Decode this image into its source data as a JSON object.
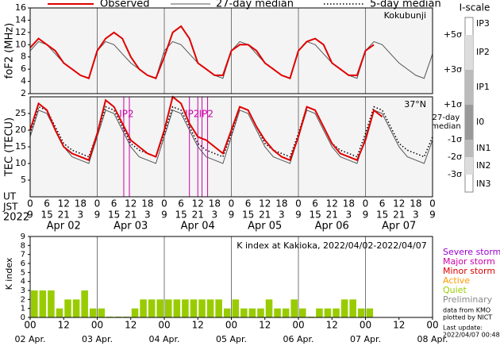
{
  "chart_data": [
    {
      "type": "line",
      "ylabel": "foF2 (MHz)",
      "annotation": "Kokubunji",
      "x": [
        0,
        3,
        6,
        9,
        12,
        15,
        18,
        21,
        24,
        27,
        30,
        33,
        36,
        39,
        42,
        45,
        48,
        51,
        54,
        57,
        60,
        63,
        66,
        69,
        72,
        75,
        78,
        81,
        84,
        87,
        90,
        93,
        96,
        99,
        102,
        105,
        108,
        111,
        114,
        117,
        120,
        123,
        126,
        129,
        132,
        135,
        138,
        141,
        144
      ],
      "ylim": [
        2,
        16
      ],
      "yticks": [
        2,
        4,
        6,
        8,
        10,
        12,
        14,
        16
      ],
      "series": [
        {
          "color": "#e00000",
          "style": "solid",
          "values": [
            9.5,
            11,
            10,
            9,
            7,
            6,
            5,
            4.5,
            9,
            11,
            12,
            11,
            8,
            6,
            5,
            4.5,
            8,
            12,
            13,
            11,
            7,
            6,
            5,
            5,
            9,
            10,
            10,
            9,
            7,
            6,
            5,
            4.5,
            9,
            10.5,
            11,
            10,
            7,
            6,
            5,
            5,
            9,
            10,
            null,
            null,
            null,
            null,
            null,
            null,
            null
          ]
        },
        {
          "color": "#555555",
          "style": "thin",
          "values": [
            9,
            10.5,
            10,
            8.5,
            7,
            6,
            5,
            4.5,
            9,
            10.5,
            10,
            8.5,
            7,
            6,
            5,
            4.5,
            9,
            10.5,
            10,
            8.5,
            7,
            6,
            5,
            4.5,
            9,
            10.5,
            10,
            8.5,
            7,
            6,
            5,
            4.5,
            9,
            10.5,
            10,
            8.5,
            7,
            6,
            5,
            4.5,
            9,
            10.5,
            10,
            8.5,
            7,
            6,
            5,
            4.5,
            8.5
          ]
        }
      ]
    },
    {
      "type": "line",
      "ylabel": "TEC (TECU)",
      "annotation": "37°N",
      "x": [
        0,
        3,
        6,
        9,
        12,
        15,
        18,
        21,
        24,
        27,
        30,
        33,
        36,
        39,
        42,
        45,
        48,
        51,
        54,
        57,
        60,
        63,
        66,
        69,
        72,
        75,
        78,
        81,
        84,
        87,
        90,
        93,
        96,
        99,
        102,
        105,
        108,
        111,
        114,
        117,
        120,
        123,
        126,
        129,
        132,
        135,
        138,
        141,
        144
      ],
      "ylim": [
        0,
        30
      ],
      "yticks": [
        5,
        10,
        15,
        20,
        25
      ],
      "series": [
        {
          "name": "Observed",
          "color": "#e00000",
          "style": "solid",
          "values": [
            20,
            28,
            26,
            20,
            15,
            13,
            12,
            11,
            19,
            29,
            27,
            22,
            17,
            15,
            13,
            12,
            20,
            30,
            28,
            22,
            18,
            17,
            15,
            13,
            20,
            27,
            26,
            21,
            17,
            14,
            12,
            11,
            18,
            27,
            26,
            21,
            16,
            13,
            12,
            11,
            17,
            26,
            24,
            null,
            null,
            null,
            null,
            null,
            null
          ]
        },
        {
          "name": "27-day median",
          "color": "#555555",
          "style": "thin",
          "values": [
            18,
            26,
            25,
            20,
            15,
            12,
            11,
            10,
            18,
            26,
            25,
            20,
            15,
            12,
            11,
            10,
            18,
            26,
            25,
            20,
            15,
            12,
            11,
            10,
            18,
            26,
            25,
            20,
            15,
            12,
            11,
            10,
            18,
            26,
            25,
            20,
            15,
            12,
            11,
            10,
            18,
            26,
            25,
            20,
            15,
            12,
            11,
            10,
            17
          ]
        },
        {
          "name": "5-day median",
          "color": "#000000",
          "style": "dotted",
          "values": [
            19,
            27,
            26,
            21,
            16,
            14,
            13,
            12,
            19,
            27,
            26,
            21,
            16,
            14,
            13,
            12,
            19,
            27,
            26,
            21,
            16,
            14,
            13,
            12,
            19,
            27,
            26,
            21,
            16,
            14,
            13,
            12,
            19,
            27,
            26,
            21,
            16,
            14,
            13,
            12,
            19,
            27,
            26,
            21,
            16,
            14,
            13,
            12,
            18
          ]
        }
      ],
      "events": [
        33.5,
        35.5,
        57,
        60,
        61.5,
        63.5
      ],
      "event_color": "#cc00aa",
      "event_labels": [
        {
          "x": 34.5,
          "label": "IP2"
        },
        {
          "x": 58,
          "label": "IP2"
        },
        {
          "x": 63,
          "label": "IP2"
        }
      ],
      "xlim": [
        0,
        144
      ],
      "xticks": [
        0,
        6,
        12,
        18,
        {
          "value": 24,
          "label": "0"
        },
        {
          "value": 30,
          "label": "6"
        },
        {
          "value": 36,
          "label": "12"
        },
        {
          "value": 42,
          "label": "18"
        },
        {
          "value": 48,
          "label": "0"
        },
        {
          "value": 54,
          "label": "6"
        },
        {
          "value": 60,
          "label": "12"
        },
        {
          "value": 66,
          "label": "18"
        },
        {
          "value": 72,
          "label": "0"
        },
        {
          "value": 78,
          "label": "6"
        },
        {
          "value": 84,
          "label": "12"
        },
        {
          "value": 90,
          "label": "18"
        },
        {
          "value": 96,
          "label": "0"
        },
        {
          "value": 102,
          "label": "6"
        },
        {
          "value": 108,
          "label": "12"
        },
        {
          "value": 114,
          "label": "18"
        },
        {
          "value": 120,
          "label": "0"
        },
        {
          "value": 126,
          "label": "6"
        },
        {
          "value": 132,
          "label": "12"
        },
        {
          "value": 138,
          "label": "18"
        },
        {
          "value": 144,
          "label": "0"
        }
      ],
      "jst_labels": [
        "9",
        "15",
        "21",
        "3",
        "9",
        "15",
        "21",
        "3",
        "9",
        "15",
        "21",
        "3",
        "9",
        "15",
        "21",
        "3",
        "9",
        "15",
        "21",
        "3",
        "9",
        "15",
        "21",
        "3",
        "9"
      ],
      "row_labels": [
        "UT",
        "JST"
      ],
      "year": "2022",
      "date_labels": [
        {
          "x": 12,
          "label": "Apr 02"
        },
        {
          "x": 36,
          "label": "Apr 03"
        },
        {
          "x": 60,
          "label": "Apr 04"
        },
        {
          "x": 84,
          "label": "Apr 05"
        },
        {
          "x": 108,
          "label": "Apr 06"
        },
        {
          "x": 132,
          "label": "Apr 07"
        }
      ]
    },
    {
      "type": "bar",
      "title": "K index at Kakioka, 2022/04/02-2022/04/07",
      "ylabel": "K index",
      "values": [
        3,
        3,
        3,
        1,
        2,
        2,
        3,
        1,
        1,
        0,
        0,
        0,
        1,
        2,
        2,
        2,
        2,
        2,
        2,
        2,
        2,
        2,
        2,
        1,
        2,
        1,
        1,
        1,
        2,
        1,
        1,
        2,
        1,
        0,
        1,
        1,
        1,
        2,
        2,
        1,
        1
      ],
      "color": "#99cc00",
      "ylim": [
        0,
        9
      ],
      "yticks": [
        0,
        1,
        2,
        3,
        4,
        5,
        6,
        7,
        8,
        9
      ],
      "xlim": [
        0,
        144
      ],
      "xticks": [
        {
          "value": 0,
          "label": "00"
        },
        12,
        {
          "value": 24,
          "label": "00"
        },
        {
          "value": 36,
          "label": "12"
        },
        {
          "value": 48,
          "label": "00"
        },
        {
          "value": 60,
          "label": "12"
        },
        {
          "value": 72,
          "label": "00"
        },
        {
          "value": 84,
          "label": "12"
        },
        {
          "value": 96,
          "label": "00"
        },
        {
          "value": 108,
          "label": "12"
        },
        {
          "value": 120,
          "label": "00"
        },
        {
          "value": 132,
          "label": "12"
        },
        {
          "value": 144,
          "label": "00"
        }
      ],
      "date_ticks": [
        {
          "value": 0,
          "label": "02 Apr."
        },
        {
          "value": 24,
          "label": "03 Apr."
        },
        {
          "value": 48,
          "label": "04 Apr."
        },
        {
          "value": 72,
          "label": "05 Apr."
        },
        {
          "value": 96,
          "label": "06 Apr."
        },
        {
          "value": 120,
          "label": "07 Apr."
        },
        {
          "value": 144,
          "label": "08 Apr."
        }
      ],
      "legend": [
        {
          "label": "Severe storm",
          "color": "#9900cc"
        },
        {
          "label": "Major storm",
          "color": "#cc00aa"
        },
        {
          "label": "Minor storm",
          "color": "#dd0000"
        },
        {
          "label": "Active",
          "color": "#ff9900"
        },
        {
          "label": "Quiet",
          "color": "#99cc00"
        },
        {
          "label": "Preliminary",
          "color": "#888888"
        }
      ],
      "notes": [
        "data from KMO",
        "plotted by NICT"
      ],
      "update": [
        "Last update:",
        "2022/04/07 00:48 U"
      ]
    }
  ],
  "iscale": {
    "title": "I-scale",
    "sigma": [
      "+5σ",
      "+3σ",
      "+1σ",
      "-1σ",
      "-2σ",
      "-3σ"
    ],
    "classes": [
      "IP3",
      "IP2",
      "IP1",
      "I0",
      "IN1",
      "IN2",
      "IN3"
    ],
    "median": [
      "27-day",
      "median"
    ]
  }
}
